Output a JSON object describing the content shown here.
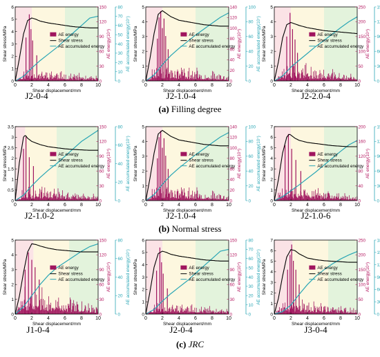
{
  "colors": {
    "stress": "#000000",
    "energy": "#a0155e",
    "accumulated": "#2aa6b5",
    "bg_pink": "#fbe3e6",
    "bg_yellow": "#fdf7df",
    "bg_green": "#e3f3dc",
    "left_axis": "#000000",
    "mid_axis": "#b3165f",
    "right_axis": "#2aa6b5"
  },
  "common": {
    "xlabel": "Shear displacement/mm",
    "ylabel_left": "Shear stress/MPa",
    "ylabel_mid": "AE energy(10⁴)",
    "ylabel_right": "AE accumulated energy(10⁷)",
    "legend": [
      "AE energy",
      "Shear stress",
      "AE accumulated energy"
    ]
  },
  "rows": [
    {
      "caption_letter": "(a)",
      "caption_text": "Filling degree",
      "caption_italic": false
    },
    {
      "caption_letter": "(b)",
      "caption_text": "Normal stress",
      "caption_italic": false
    },
    {
      "caption_letter": "(c)",
      "caption_text": "JRC",
      "caption_italic": true
    }
  ],
  "chart_data": [
    {
      "type": "line",
      "label": "J2-0-4",
      "xlim": [
        0,
        10
      ],
      "xticks": [
        0,
        2,
        4,
        6,
        8,
        10
      ],
      "ylim_stress": [
        0,
        6
      ],
      "yticks_stress": [
        0,
        1,
        2,
        3,
        4,
        5,
        6
      ],
      "ylim_energy": [
        0,
        150
      ],
      "yticks_energy": [
        0,
        30,
        60,
        90,
        120,
        150
      ],
      "ylim_accum": [
        0,
        80
      ],
      "yticks_accum": [
        0,
        10,
        20,
        30,
        40,
        50,
        60,
        70,
        80
      ],
      "stress": {
        "x": [
          0,
          0.5,
          1,
          1.5,
          2,
          2.5,
          3,
          4,
          5,
          6,
          7,
          8,
          9,
          10
        ],
        "y": [
          0,
          1.8,
          3.8,
          4.9,
          5.1,
          5.0,
          4.85,
          4.7,
          4.6,
          4.5,
          4.4,
          4.35,
          4.3,
          4.3
        ]
      },
      "accumulated": {
        "x": [
          0,
          1,
          2,
          3,
          4,
          5,
          6,
          7,
          8,
          9,
          10
        ],
        "y": [
          0,
          5,
          14,
          22,
          29,
          36,
          44,
          52,
          60,
          68,
          70
        ]
      },
      "energy_peaks": {
        "x": [
          1.3,
          1.7,
          1.9,
          2.1,
          2.6
        ],
        "y": [
          88,
          135,
          105,
          82,
          52
        ]
      },
      "energy_level": 24,
      "seed": 11,
      "zones": [
        2,
        4,
        6,
        10
      ]
    },
    {
      "type": "line",
      "label": "J2-1.0-4",
      "xlim": [
        0,
        10
      ],
      "xticks": [
        0,
        2,
        4,
        6,
        8,
        10
      ],
      "ylim_stress": [
        0,
        5
      ],
      "yticks_stress": [
        0,
        1,
        2,
        3,
        4,
        5
      ],
      "ylim_energy": [
        0,
        140
      ],
      "yticks_energy": [
        0,
        20,
        40,
        60,
        80,
        100,
        120,
        140
      ],
      "ylim_accum": [
        0,
        100
      ],
      "yticks_accum": [
        0,
        20,
        40,
        60,
        80,
        100
      ],
      "stress": {
        "x": [
          0,
          0.5,
          1,
          1.5,
          2,
          2.5,
          3,
          4,
          5,
          6,
          7,
          8,
          9,
          10
        ],
        "y": [
          0,
          1.5,
          3.2,
          4.5,
          4.75,
          4.55,
          4.35,
          4.1,
          4.0,
          3.9,
          3.8,
          3.75,
          3.7,
          3.7
        ]
      },
      "accumulated": {
        "x": [
          0,
          1,
          2,
          3,
          4,
          5,
          6,
          7,
          8,
          9,
          10
        ],
        "y": [
          0,
          8,
          22,
          34,
          44,
          53,
          62,
          70,
          78,
          86,
          92
        ]
      },
      "energy_peaks": {
        "x": [
          1.4,
          1.6,
          1.8,
          2.0,
          2.2,
          2.4,
          2.7
        ],
        "y": [
          80,
          120,
          132,
          100,
          118,
          85,
          60
        ]
      },
      "energy_level": 30,
      "seed": 23,
      "zones": [
        2,
        4,
        6,
        10
      ]
    },
    {
      "type": "line",
      "label": "J2-2.0-4",
      "xlim": [
        0,
        10
      ],
      "xticks": [
        0,
        2,
        4,
        6,
        8,
        10
      ],
      "ylim_stress": [
        0,
        5
      ],
      "yticks_stress": [
        0,
        1,
        2,
        3,
        4,
        5
      ],
      "ylim_energy": [
        0,
        250
      ],
      "yticks_energy": [
        0,
        50,
        100,
        150,
        200,
        250
      ],
      "ylim_accum": [
        0,
        150
      ],
      "yticks_accum": [
        0,
        30,
        60,
        90,
        120,
        150
      ],
      "stress": {
        "x": [
          0,
          0.5,
          1,
          1.5,
          2,
          2.5,
          3,
          4,
          5,
          6,
          7,
          8,
          9,
          10
        ],
        "y": [
          0,
          1.3,
          2.9,
          3.8,
          3.95,
          3.85,
          3.75,
          3.6,
          3.5,
          3.4,
          3.35,
          3.3,
          3.25,
          3.2
        ]
      },
      "accumulated": {
        "x": [
          0,
          1,
          2,
          3,
          4,
          5,
          6,
          7,
          8,
          9,
          10
        ],
        "y": [
          0,
          10,
          28,
          42,
          56,
          70,
          82,
          95,
          108,
          120,
          130
        ]
      },
      "energy_peaks": {
        "x": [
          1.5,
          1.9,
          2.2,
          2.5,
          2.8
        ],
        "y": [
          150,
          230,
          175,
          140,
          95
        ]
      },
      "energy_level": 55,
      "seed": 37,
      "zones": [
        2,
        4,
        6,
        10
      ]
    },
    {
      "type": "line",
      "label": "J2-1.0-2",
      "xlim": [
        0,
        10
      ],
      "xticks": [
        0,
        2,
        4,
        6,
        8,
        10
      ],
      "ylim_stress": [
        0,
        3.5
      ],
      "yticks_stress": [
        0,
        0.5,
        1.0,
        1.5,
        2.0,
        2.5,
        3.0,
        3.5
      ],
      "ylim_energy": [
        0,
        150
      ],
      "yticks_energy": [
        0,
        30,
        60,
        90,
        120,
        150
      ],
      "ylim_accum": [
        0,
        80
      ],
      "yticks_accum": [
        0,
        20,
        40,
        60,
        80
      ],
      "stress": {
        "x": [
          0,
          0.5,
          1,
          1.2,
          1.5,
          2,
          3,
          4,
          5,
          6,
          7,
          8,
          9,
          10
        ],
        "y": [
          0,
          1.8,
          3.0,
          3.1,
          2.95,
          2.8,
          2.65,
          2.55,
          2.5,
          2.45,
          2.42,
          2.4,
          2.38,
          2.38
        ]
      },
      "accumulated": {
        "x": [
          0,
          1,
          2,
          3,
          4,
          5,
          6,
          7,
          8,
          9,
          10
        ],
        "y": [
          0,
          6,
          16,
          25,
          33,
          40,
          48,
          56,
          64,
          70,
          76
        ]
      },
      "energy_peaks": {
        "x": [
          1.0,
          1.3,
          1.7,
          2.2
        ],
        "y": [
          105,
          130,
          88,
          70
        ]
      },
      "energy_level": 28,
      "seed": 49,
      "zones": [
        1.2,
        3,
        5,
        10
      ]
    },
    {
      "type": "line",
      "label": "J2-1.0-4",
      "xlim": [
        0,
        10
      ],
      "xticks": [
        0,
        2,
        4,
        6,
        8,
        10
      ],
      "ylim_stress": [
        0,
        5
      ],
      "yticks_stress": [
        0,
        1,
        2,
        3,
        4,
        5
      ],
      "ylim_energy": [
        0,
        140
      ],
      "yticks_energy": [
        0,
        20,
        40,
        60,
        80,
        100,
        120,
        140
      ],
      "ylim_accum": [
        0,
        100
      ],
      "yticks_accum": [
        0,
        20,
        40,
        60,
        80,
        100
      ],
      "stress": {
        "x": [
          0,
          0.5,
          1,
          1.5,
          2,
          2.5,
          3,
          4,
          5,
          6,
          7,
          8,
          9,
          10
        ],
        "y": [
          0,
          1.5,
          3.2,
          4.5,
          4.75,
          4.55,
          4.35,
          4.1,
          4.0,
          3.9,
          3.8,
          3.75,
          3.7,
          3.7
        ]
      },
      "accumulated": {
        "x": [
          0,
          1,
          2,
          3,
          4,
          5,
          6,
          7,
          8,
          9,
          10
        ],
        "y": [
          0,
          8,
          22,
          34,
          44,
          53,
          62,
          70,
          78,
          86,
          92
        ]
      },
      "energy_peaks": {
        "x": [
          1.4,
          1.6,
          1.8,
          2.0,
          2.2,
          2.4,
          2.7
        ],
        "y": [
          80,
          120,
          132,
          100,
          118,
          85,
          60
        ]
      },
      "energy_level": 30,
      "seed": 23,
      "zones": [
        2,
        4,
        6,
        10
      ]
    },
    {
      "type": "line",
      "label": "J2-1.0-6",
      "xlim": [
        0,
        10
      ],
      "xticks": [
        0,
        2,
        4,
        6,
        8,
        10
      ],
      "ylim_stress": [
        0,
        7
      ],
      "yticks_stress": [
        0,
        1,
        2,
        3,
        4,
        5,
        6,
        7
      ],
      "ylim_energy": [
        0,
        200
      ],
      "yticks_energy": [
        0,
        40,
        80,
        120,
        160,
        200
      ],
      "ylim_accum": [
        0,
        150
      ],
      "yticks_accum": [
        0,
        30,
        60,
        90,
        120,
        150
      ],
      "stress": {
        "x": [
          0,
          0.5,
          1,
          1.5,
          1.8,
          2,
          2.5,
          3,
          4,
          5,
          6,
          7,
          8,
          9,
          10
        ],
        "y": [
          0,
          2.0,
          4.5,
          6.0,
          6.3,
          6.2,
          5.9,
          5.7,
          5.5,
          5.4,
          5.3,
          5.2,
          5.15,
          5.1,
          5.1
        ]
      },
      "accumulated": {
        "x": [
          0,
          1,
          2,
          3,
          4,
          5,
          6,
          7,
          8,
          9,
          10
        ],
        "y": [
          0,
          8,
          20,
          32,
          45,
          58,
          72,
          86,
          100,
          113,
          122
        ]
      },
      "energy_peaks": {
        "x": [
          1.3,
          1.7,
          2.1,
          2.6,
          3.2
        ],
        "y": [
          150,
          180,
          140,
          110,
          80
        ]
      },
      "energy_level": 38,
      "seed": 61,
      "zones": [
        2,
        4,
        6,
        10
      ]
    },
    {
      "type": "line",
      "label": "J1-0-4",
      "xlim": [
        0,
        10
      ],
      "xticks": [
        0,
        2,
        4,
        6,
        8,
        10
      ],
      "ylim_stress": [
        0,
        5
      ],
      "yticks_stress": [
        0,
        1,
        2,
        3,
        4,
        5
      ],
      "ylim_energy": [
        0,
        150
      ],
      "yticks_energy": [
        0,
        30,
        60,
        90,
        120,
        150
      ],
      "ylim_accum": [
        0,
        80
      ],
      "yticks_accum": [
        0,
        20,
        40,
        60,
        80
      ],
      "stress": {
        "x": [
          0,
          0.5,
          1,
          1.5,
          2,
          2.5,
          3,
          4,
          5,
          6,
          7,
          8,
          9,
          10
        ],
        "y": [
          0,
          1.2,
          2.8,
          4.2,
          4.75,
          4.7,
          4.6,
          4.45,
          4.35,
          4.3,
          4.25,
          4.2,
          4.2,
          4.2
        ]
      },
      "accumulated": {
        "x": [
          0,
          1,
          2,
          3,
          4,
          5,
          6,
          7,
          8,
          9,
          10
        ],
        "y": [
          0,
          8,
          20,
          32,
          42,
          50,
          56,
          62,
          68,
          73,
          76
        ]
      },
      "energy_peaks": {
        "x": [
          1.2,
          1.6,
          2.0,
          2.4,
          2.9
        ],
        "y": [
          90,
          125,
          110,
          95,
          70
        ]
      },
      "energy_level": 45,
      "seed": 73,
      "zones": [
        2.2,
        4.2,
        6.5,
        10
      ]
    },
    {
      "type": "line",
      "label": "J2-0-4",
      "xlim": [
        0,
        10
      ],
      "xticks": [
        0,
        2,
        4,
        6,
        8,
        10
      ],
      "ylim_stress": [
        0,
        6
      ],
      "yticks_stress": [
        0,
        1,
        2,
        3,
        4,
        5,
        6
      ],
      "ylim_energy": [
        0,
        150
      ],
      "yticks_energy": [
        0,
        30,
        60,
        90,
        120,
        150
      ],
      "ylim_accum": [
        0,
        80
      ],
      "yticks_accum": [
        0,
        10,
        20,
        30,
        40,
        50,
        60,
        70,
        80
      ],
      "stress": {
        "x": [
          0,
          0.5,
          1,
          1.5,
          2,
          2.5,
          3,
          4,
          5,
          6,
          7,
          8,
          9,
          10
        ],
        "y": [
          0,
          1.8,
          3.8,
          4.9,
          5.1,
          5.0,
          4.85,
          4.7,
          4.6,
          4.5,
          4.4,
          4.35,
          4.3,
          4.3
        ]
      },
      "accumulated": {
        "x": [
          0,
          1,
          2,
          3,
          4,
          5,
          6,
          7,
          8,
          9,
          10
        ],
        "y": [
          0,
          5,
          14,
          22,
          29,
          36,
          44,
          52,
          60,
          68,
          70
        ]
      },
      "energy_peaks": {
        "x": [
          1.3,
          1.7,
          1.9,
          2.1,
          2.6
        ],
        "y": [
          88,
          135,
          105,
          82,
          52
        ]
      },
      "energy_level": 24,
      "seed": 11,
      "zones": [
        2,
        4,
        6,
        10
      ]
    },
    {
      "type": "line",
      "label": "J3-0-4",
      "xlim": [
        0,
        10
      ],
      "xticks": [
        0,
        2,
        4,
        6,
        8,
        10
      ],
      "ylim_stress": [
        0,
        7
      ],
      "yticks_stress": [
        0,
        1,
        2,
        3,
        4,
        5,
        6,
        7
      ],
      "ylim_energy": [
        0,
        250
      ],
      "yticks_energy": [
        0,
        50,
        100,
        150,
        200,
        250
      ],
      "ylim_accum": [
        0,
        180
      ],
      "yticks_accum": [
        0,
        30,
        60,
        90,
        120,
        150,
        180
      ],
      "stress": {
        "x": [
          0,
          0.5,
          1,
          1.5,
          2,
          2.5,
          3,
          4,
          5,
          6,
          7,
          8,
          9,
          10
        ],
        "y": [
          0,
          1.5,
          3.6,
          5.4,
          6.1,
          6.0,
          5.7,
          5.3,
          5.15,
          5.05,
          5.0,
          4.95,
          4.9,
          4.9
        ]
      },
      "accumulated": {
        "x": [
          0,
          1,
          2,
          3,
          4,
          5,
          6,
          7,
          8,
          9,
          10
        ],
        "y": [
          0,
          6,
          22,
          48,
          72,
          92,
          108,
          122,
          134,
          144,
          152
        ]
      },
      "energy_peaks": {
        "x": [
          1.6,
          1.9,
          2.1,
          2.3,
          2.6,
          3.0
        ],
        "y": [
          150,
          200,
          235,
          180,
          150,
          100
        ]
      },
      "energy_level": 50,
      "seed": 89,
      "zones": [
        2.2,
        4.2,
        6.5,
        10
      ]
    }
  ]
}
